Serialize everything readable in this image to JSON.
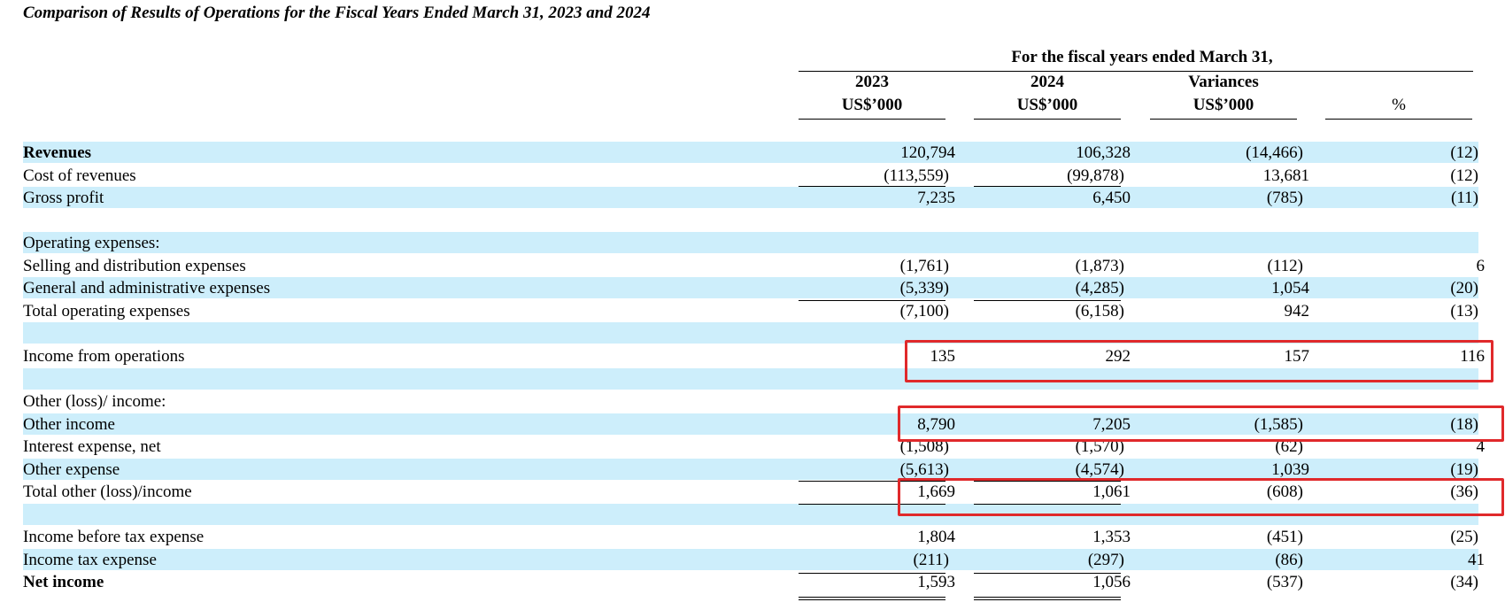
{
  "title": "Comparison of Results of Operations for the Fiscal Years Ended March 31, 2023 and 2024",
  "header": {
    "group": "For the fiscal years ended March 31,",
    "columns": [
      {
        "line1": "2023",
        "line2": "US$’000"
      },
      {
        "line1": "2024",
        "line2": "US$’000"
      },
      {
        "line1": "Variances",
        "line2": "US$’000"
      },
      {
        "line1": "",
        "line2": "%"
      }
    ]
  },
  "rows": [
    {
      "label": "Revenues",
      "bold": true,
      "shade": true,
      "values": [
        "120,794",
        "106,328",
        "(14,466)",
        "(12)"
      ]
    },
    {
      "label": "Cost of revenues",
      "shade": false,
      "values": [
        "(113,559)",
        "(99,878)",
        "13,681",
        "(12)"
      ]
    },
    {
      "label": "Gross profit",
      "shade": true,
      "values": [
        "7,235",
        "6,450",
        "(785)",
        "(11)"
      ]
    },
    {
      "label": "",
      "shade": false,
      "values": [
        "",
        "",
        "",
        ""
      ]
    },
    {
      "label": "Operating expenses:",
      "shade": true,
      "values": [
        "",
        "",
        "",
        ""
      ]
    },
    {
      "label": "Selling and distribution expenses",
      "shade": false,
      "values": [
        "(1,761)",
        "(1,873)",
        "(112)",
        "6"
      ]
    },
    {
      "label": "General and administrative expenses",
      "shade": true,
      "values": [
        "(5,339)",
        "(4,285)",
        "1,054",
        "(20)"
      ]
    },
    {
      "label": "Total operating expenses",
      "shade": false,
      "values": [
        "(7,100)",
        "(6,158)",
        "942",
        "(13)"
      ]
    },
    {
      "label": "",
      "shade": true,
      "values": [
        "",
        "",
        "",
        ""
      ]
    },
    {
      "label": "Income from operations",
      "shade": false,
      "values": [
        "135",
        "292",
        "157",
        "116"
      ]
    },
    {
      "label": "",
      "shade": true,
      "values": [
        "",
        "",
        "",
        ""
      ]
    },
    {
      "label": "Other (loss)/ income:",
      "shade": false,
      "values": [
        "",
        "",
        "",
        ""
      ]
    },
    {
      "label": "Other income",
      "shade": true,
      "values": [
        "8,790",
        "7,205",
        "(1,585)",
        "(18)"
      ]
    },
    {
      "label": "Interest expense, net",
      "shade": false,
      "values": [
        "(1,508)",
        "(1,570)",
        "(62)",
        "4"
      ]
    },
    {
      "label": "Other expense",
      "shade": true,
      "values": [
        "(5,613)",
        "(4,574)",
        "1,039",
        "(19)"
      ]
    },
    {
      "label": "Total other (loss)/income",
      "shade": false,
      "values": [
        "1,669",
        "1,061",
        "(608)",
        "(36)"
      ]
    },
    {
      "label": "",
      "shade": true,
      "values": [
        "",
        "",
        "",
        ""
      ]
    },
    {
      "label": "Income before tax expense",
      "shade": false,
      "values": [
        "1,804",
        "1,353",
        "(451)",
        "(25)"
      ]
    },
    {
      "label": "Income tax expense",
      "shade": true,
      "values": [
        "(211)",
        "(297)",
        "(86)",
        "41"
      ]
    },
    {
      "label": "Net income",
      "bold": true,
      "shade": false,
      "values": [
        "1,593",
        "1,056",
        "(537)",
        "(34)"
      ]
    }
  ],
  "highlight_color": "#e0292b",
  "shade_color": "#cdeefb"
}
